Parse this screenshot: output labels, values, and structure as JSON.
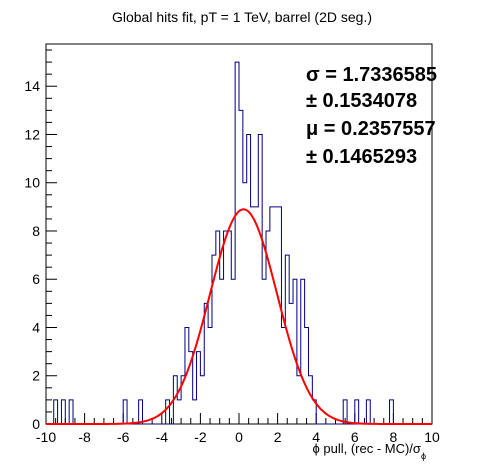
{
  "chart_data": {
    "type": "histogram",
    "title": "Global hits fit, pT = 1 TeV, barrel (2D seg.)",
    "xlabel": "ϕ pull, (rec - MC)/σϕ",
    "xlabel_main": "ϕ pull, (rec - MC)/σ",
    "xlabel_sub": "ϕ",
    "ylabel": "",
    "xlim": [
      -10,
      10
    ],
    "ylim": [
      0,
      15.75
    ],
    "bin_width": 0.2,
    "x_ticks": [
      -10,
      -8,
      -6,
      -4,
      -2,
      0,
      2,
      4,
      6,
      8,
      10
    ],
    "x_tick_labels": [
      "-10",
      "-8",
      "-6",
      "-4",
      "-2",
      "0",
      "2",
      "4",
      "6",
      "8",
      "10"
    ],
    "y_ticks": [
      0,
      2,
      4,
      6,
      8,
      10,
      12,
      14
    ],
    "y_tick_labels": [
      "0",
      "2",
      "4",
      "6",
      "8",
      "10",
      "12",
      "14"
    ],
    "histogram_color": "#00007f",
    "fit_color": "#ff0000",
    "bins": [
      {
        "x0": -10.0,
        "count": 0
      },
      {
        "x0": -9.6,
        "count": 1
      },
      {
        "x0": -9.4,
        "count": 0
      },
      {
        "x0": -9.2,
        "count": 1
      },
      {
        "x0": -9.0,
        "count": 0
      },
      {
        "x0": -8.8,
        "count": 1
      },
      {
        "x0": -8.6,
        "count": 0
      },
      {
        "x0": -6.0,
        "count": 1
      },
      {
        "x0": -5.8,
        "count": 0
      },
      {
        "x0": -5.2,
        "count": 1
      },
      {
        "x0": -5.0,
        "count": 0
      },
      {
        "x0": -3.8,
        "count": 1
      },
      {
        "x0": -3.6,
        "count": 0
      },
      {
        "x0": -3.4,
        "count": 2
      },
      {
        "x0": -3.2,
        "count": 1
      },
      {
        "x0": -3.0,
        "count": 2
      },
      {
        "x0": -2.8,
        "count": 4
      },
      {
        "x0": -2.6,
        "count": 3
      },
      {
        "x0": -2.4,
        "count": 1
      },
      {
        "x0": -2.2,
        "count": 3
      },
      {
        "x0": -2.0,
        "count": 2
      },
      {
        "x0": -1.8,
        "count": 5
      },
      {
        "x0": -1.6,
        "count": 4
      },
      {
        "x0": -1.4,
        "count": 7
      },
      {
        "x0": -1.2,
        "count": 8
      },
      {
        "x0": -1.0,
        "count": 6
      },
      {
        "x0": -0.8,
        "count": 8
      },
      {
        "x0": -0.6,
        "count": 8
      },
      {
        "x0": -0.4,
        "count": 6
      },
      {
        "x0": -0.2,
        "count": 15
      },
      {
        "x0": 0.0,
        "count": 13
      },
      {
        "x0": 0.2,
        "count": 10
      },
      {
        "x0": 0.4,
        "count": 12
      },
      {
        "x0": 0.6,
        "count": 9
      },
      {
        "x0": 0.8,
        "count": 9
      },
      {
        "x0": 1.0,
        "count": 12
      },
      {
        "x0": 1.2,
        "count": 6
      },
      {
        "x0": 1.4,
        "count": 8
      },
      {
        "x0": 1.6,
        "count": 9
      },
      {
        "x0": 1.8,
        "count": 9
      },
      {
        "x0": 2.0,
        "count": 9
      },
      {
        "x0": 2.2,
        "count": 4
      },
      {
        "x0": 2.4,
        "count": 7
      },
      {
        "x0": 2.6,
        "count": 5
      },
      {
        "x0": 2.8,
        "count": 6
      },
      {
        "x0": 3.0,
        "count": 2
      },
      {
        "x0": 3.2,
        "count": 6
      },
      {
        "x0": 3.4,
        "count": 4
      },
      {
        "x0": 3.6,
        "count": 2
      },
      {
        "x0": 3.8,
        "count": 1
      },
      {
        "x0": 4.0,
        "count": 0
      },
      {
        "x0": 5.4,
        "count": 1
      },
      {
        "x0": 5.6,
        "count": 0
      },
      {
        "x0": 6.0,
        "count": 1
      },
      {
        "x0": 6.2,
        "count": 0
      },
      {
        "x0": 6.6,
        "count": 1
      },
      {
        "x0": 6.8,
        "count": 0
      },
      {
        "x0": 7.8,
        "count": 1
      },
      {
        "x0": 8.0,
        "count": 0
      },
      {
        "x0": 10.0,
        "count": 0
      }
    ],
    "fit": {
      "type": "gaussian",
      "amplitude": 8.9,
      "mean": 0.2357557,
      "sigma": 1.7336585,
      "x_range": [
        -10,
        10
      ]
    },
    "stats": [
      {
        "text": "σ = 1.7336585"
      },
      {
        "text": "± 0.1534078"
      },
      {
        "text": "μ = 0.2357557"
      },
      {
        "text": "± 0.1465293"
      }
    ]
  }
}
